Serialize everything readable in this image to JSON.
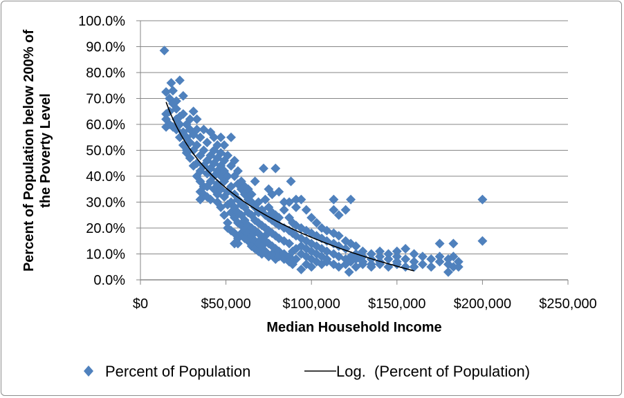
{
  "chart_data": {
    "type": "scatter",
    "xlabel": "Median Household Income",
    "ylabel_lines": [
      "Percent of Population below 200% of",
      "the Poverty Level"
    ],
    "xlim": [
      0,
      250000
    ],
    "ylim": [
      0,
      100
    ],
    "x_ticks": [
      0,
      50000,
      100000,
      150000,
      200000,
      250000
    ],
    "x_tick_labels": [
      "$0",
      "$50,000",
      "$100,000",
      "$150,000",
      "$200,000",
      "$250,000"
    ],
    "y_ticks": [
      0,
      10,
      20,
      30,
      40,
      50,
      60,
      70,
      80,
      90,
      100
    ],
    "y_tick_labels": [
      "0.0%",
      "10.0%",
      "20.0%",
      "30.0%",
      "40.0%",
      "50.0%",
      "60.0%",
      "70.0%",
      "80.0%",
      "90.0%",
      "100.0%"
    ],
    "grid": "horizontal",
    "legend_position": "bottom",
    "series": [
      {
        "name": "Percent of Population",
        "marker": "diamond",
        "color": "#4F81BD",
        "points": [
          [
            14000,
            88.5
          ],
          [
            15000,
            72.5
          ],
          [
            15000,
            59
          ],
          [
            15000,
            64
          ],
          [
            15000,
            62
          ],
          [
            17000,
            65
          ],
          [
            17000,
            60
          ],
          [
            17000,
            70
          ],
          [
            19000,
            59
          ],
          [
            19000,
            73
          ],
          [
            19000,
            68
          ],
          [
            18000,
            76
          ],
          [
            21000,
            69
          ],
          [
            21000,
            62
          ],
          [
            21000,
            58
          ],
          [
            21000,
            66
          ],
          [
            23000,
            77
          ],
          [
            23000,
            63
          ],
          [
            23000,
            55
          ],
          [
            23000,
            60
          ],
          [
            25000,
            71
          ],
          [
            25000,
            57
          ],
          [
            25000,
            52
          ],
          [
            25000,
            64
          ],
          [
            27000,
            49
          ],
          [
            27000,
            55
          ],
          [
            27000,
            60
          ],
          [
            27000,
            50
          ],
          [
            29000,
            53
          ],
          [
            29000,
            58
          ],
          [
            29000,
            47
          ],
          [
            29000,
            62
          ],
          [
            31000,
            65
          ],
          [
            31000,
            50
          ],
          [
            31000,
            44
          ],
          [
            31000,
            56
          ],
          [
            33000,
            62
          ],
          [
            33000,
            45
          ],
          [
            33000,
            52
          ],
          [
            33000,
            40
          ],
          [
            33000,
            58
          ],
          [
            35000,
            38
          ],
          [
            35000,
            48
          ],
          [
            35000,
            55
          ],
          [
            35000,
            42
          ],
          [
            35000,
            31
          ],
          [
            35000,
            34
          ],
          [
            37000,
            50
          ],
          [
            37000,
            44
          ],
          [
            37000,
            36
          ],
          [
            37000,
            58
          ],
          [
            37000,
            33
          ],
          [
            39000,
            53
          ],
          [
            39000,
            41
          ],
          [
            39000,
            46
          ],
          [
            39000,
            32
          ],
          [
            39000,
            36
          ],
          [
            41000,
            57
          ],
          [
            41000,
            38
          ],
          [
            41000,
            48
          ],
          [
            41000,
            43
          ],
          [
            41000,
            31
          ],
          [
            43000,
            55
          ],
          [
            43000,
            40
          ],
          [
            43000,
            35
          ],
          [
            43000,
            45
          ],
          [
            43000,
            50
          ],
          [
            45000,
            52
          ],
          [
            45000,
            37
          ],
          [
            45000,
            42
          ],
          [
            45000,
            33
          ],
          [
            45000,
            47
          ],
          [
            45000,
            30
          ],
          [
            47000,
            49
          ],
          [
            47000,
            35
          ],
          [
            47000,
            40
          ],
          [
            47000,
            28
          ],
          [
            47000,
            44
          ],
          [
            47000,
            55
          ],
          [
            49000,
            46
          ],
          [
            49000,
            32
          ],
          [
            49000,
            38
          ],
          [
            49000,
            25
          ],
          [
            49000,
            42
          ],
          [
            49000,
            52
          ],
          [
            51000,
            48
          ],
          [
            51000,
            22
          ],
          [
            51000,
            34
          ],
          [
            51000,
            40
          ],
          [
            51000,
            29
          ],
          [
            51000,
            20
          ],
          [
            53000,
            44
          ],
          [
            53000,
            30
          ],
          [
            53000,
            36
          ],
          [
            53000,
            26
          ],
          [
            53000,
            19
          ],
          [
            53000,
            55
          ],
          [
            55000,
            40
          ],
          [
            55000,
            28
          ],
          [
            55000,
            33
          ],
          [
            55000,
            14
          ],
          [
            55000,
            24
          ],
          [
            55000,
            46
          ],
          [
            55000,
            18
          ],
          [
            57000,
            37
          ],
          [
            57000,
            26
          ],
          [
            57000,
            31
          ],
          [
            57000,
            22
          ],
          [
            57000,
            14
          ],
          [
            57000,
            42
          ],
          [
            57000,
            16
          ],
          [
            59000,
            35
          ],
          [
            59000,
            25
          ],
          [
            59000,
            29
          ],
          [
            59000,
            18
          ],
          [
            59000,
            38
          ],
          [
            59000,
            21
          ],
          [
            61000,
            33
          ],
          [
            61000,
            23
          ],
          [
            61000,
            28
          ],
          [
            61000,
            16
          ],
          [
            61000,
            36
          ],
          [
            61000,
            19
          ],
          [
            63000,
            31
          ],
          [
            63000,
            21
          ],
          [
            63000,
            26
          ],
          [
            63000,
            15
          ],
          [
            63000,
            35
          ],
          [
            63000,
            18
          ],
          [
            65000,
            30
          ],
          [
            65000,
            20
          ],
          [
            65000,
            25
          ],
          [
            65000,
            13
          ],
          [
            65000,
            33
          ],
          [
            65000,
            17
          ],
          [
            67000,
            28
          ],
          [
            67000,
            19
          ],
          [
            67000,
            23
          ],
          [
            67000,
            12
          ],
          [
            67000,
            38
          ],
          [
            67000,
            15
          ],
          [
            69000,
            26
          ],
          [
            69000,
            18
          ],
          [
            69000,
            22
          ],
          [
            69000,
            11
          ],
          [
            69000,
            30
          ],
          [
            69000,
            14
          ],
          [
            71000,
            27
          ],
          [
            71000,
            16
          ],
          [
            71000,
            21
          ],
          [
            71000,
            10
          ],
          [
            72000,
            43
          ],
          [
            71000,
            13
          ],
          [
            73000,
            25
          ],
          [
            73000,
            15
          ],
          [
            73000,
            20
          ],
          [
            73000,
            11
          ],
          [
            73000,
            31
          ],
          [
            73000,
            17
          ],
          [
            75000,
            24
          ],
          [
            75000,
            14
          ],
          [
            75000,
            19
          ],
          [
            75000,
            9
          ],
          [
            75000,
            28
          ],
          [
            75000,
            35
          ],
          [
            77000,
            23
          ],
          [
            77000,
            13
          ],
          [
            77000,
            18
          ],
          [
            77000,
            10
          ],
          [
            77000,
            26
          ],
          [
            77000,
            33
          ],
          [
            79000,
            22
          ],
          [
            79000,
            12
          ],
          [
            79000,
            17
          ],
          [
            79000,
            43
          ],
          [
            79000,
            8
          ],
          [
            79000,
            25
          ],
          [
            81000,
            21
          ],
          [
            81000,
            11
          ],
          [
            81000,
            16
          ],
          [
            81000,
            9
          ],
          [
            81000,
            24
          ],
          [
            81000,
            34
          ],
          [
            84000,
            20
          ],
          [
            84000,
            10
          ],
          [
            84000,
            15
          ],
          [
            84000,
            8
          ],
          [
            84000,
            27
          ],
          [
            84000,
            30
          ],
          [
            87000,
            19
          ],
          [
            87000,
            9
          ],
          [
            87000,
            14
          ],
          [
            87000,
            7
          ],
          [
            87000,
            24
          ],
          [
            87000,
            30
          ],
          [
            88000,
            38
          ],
          [
            89000,
            18
          ],
          [
            89000,
            11
          ],
          [
            89000,
            6
          ],
          [
            89000,
            22
          ],
          [
            91000,
            31
          ],
          [
            91000,
            17
          ],
          [
            91000,
            12
          ],
          [
            91000,
            8
          ],
          [
            91000,
            21
          ],
          [
            91000,
            28
          ],
          [
            94000,
            16
          ],
          [
            94000,
            10
          ],
          [
            94000,
            4
          ],
          [
            94000,
            20
          ],
          [
            94000,
            31
          ],
          [
            94000,
            13
          ],
          [
            97000,
            15
          ],
          [
            97000,
            9
          ],
          [
            97000,
            6
          ],
          [
            97000,
            19
          ],
          [
            97000,
            27
          ],
          [
            97000,
            12
          ],
          [
            100000,
            14
          ],
          [
            100000,
            8
          ],
          [
            100000,
            5
          ],
          [
            100000,
            18
          ],
          [
            100000,
            24
          ],
          [
            100000,
            11
          ],
          [
            103000,
            13
          ],
          [
            103000,
            7
          ],
          [
            103000,
            17
          ],
          [
            103000,
            10
          ],
          [
            103000,
            22
          ],
          [
            106000,
            12
          ],
          [
            106000,
            6
          ],
          [
            106000,
            16
          ],
          [
            106000,
            9
          ],
          [
            106000,
            20
          ],
          [
            109000,
            11
          ],
          [
            109000,
            7
          ],
          [
            109000,
            15
          ],
          [
            109000,
            8
          ],
          [
            109000,
            19
          ],
          [
            113000,
            31
          ],
          [
            113000,
            10
          ],
          [
            113000,
            6
          ],
          [
            113000,
            14
          ],
          [
            113000,
            18
          ],
          [
            113000,
            27
          ],
          [
            116000,
            9
          ],
          [
            116000,
            5
          ],
          [
            116000,
            13
          ],
          [
            116000,
            17
          ],
          [
            116000,
            25
          ],
          [
            120000,
            8
          ],
          [
            120000,
            6
          ],
          [
            120000,
            12
          ],
          [
            120000,
            15
          ],
          [
            120000,
            27
          ],
          [
            123000,
            31
          ],
          [
            122000,
            3
          ],
          [
            123000,
            9
          ],
          [
            123000,
            14
          ],
          [
            123000,
            7
          ],
          [
            126000,
            10
          ],
          [
            126000,
            5
          ],
          [
            126000,
            13
          ],
          [
            126000,
            8
          ],
          [
            130000,
            9
          ],
          [
            130000,
            6
          ],
          [
            130000,
            11
          ],
          [
            130000,
            7
          ],
          [
            135000,
            8
          ],
          [
            135000,
            5
          ],
          [
            135000,
            10
          ],
          [
            135000,
            6
          ],
          [
            140000,
            9
          ],
          [
            140000,
            6
          ],
          [
            140000,
            11
          ],
          [
            140000,
            7
          ],
          [
            145000,
            8
          ],
          [
            145000,
            5
          ],
          [
            145000,
            10
          ],
          [
            150000,
            9
          ],
          [
            150000,
            6
          ],
          [
            150000,
            11
          ],
          [
            150000,
            7
          ],
          [
            155000,
            8
          ],
          [
            155000,
            12
          ],
          [
            155000,
            5
          ],
          [
            160000,
            7
          ],
          [
            160000,
            10
          ],
          [
            160000,
            5
          ],
          [
            165000,
            9
          ],
          [
            165000,
            6
          ],
          [
            170000,
            8
          ],
          [
            170000,
            5
          ],
          [
            175000,
            14
          ],
          [
            175000,
            7
          ],
          [
            175000,
            9
          ],
          [
            180000,
            8
          ],
          [
            180000,
            3
          ],
          [
            180000,
            6
          ],
          [
            183000,
            14
          ],
          [
            183000,
            9
          ],
          [
            183000,
            5
          ],
          [
            186000,
            7
          ],
          [
            186000,
            5
          ],
          [
            200000,
            31
          ],
          [
            200000,
            15
          ]
        ]
      },
      {
        "name": "Log.  (Percent of Population)",
        "type": "trendline",
        "fit": "logarithmic",
        "color": "#000000",
        "x_range": [
          15000,
          160000
        ]
      }
    ]
  }
}
